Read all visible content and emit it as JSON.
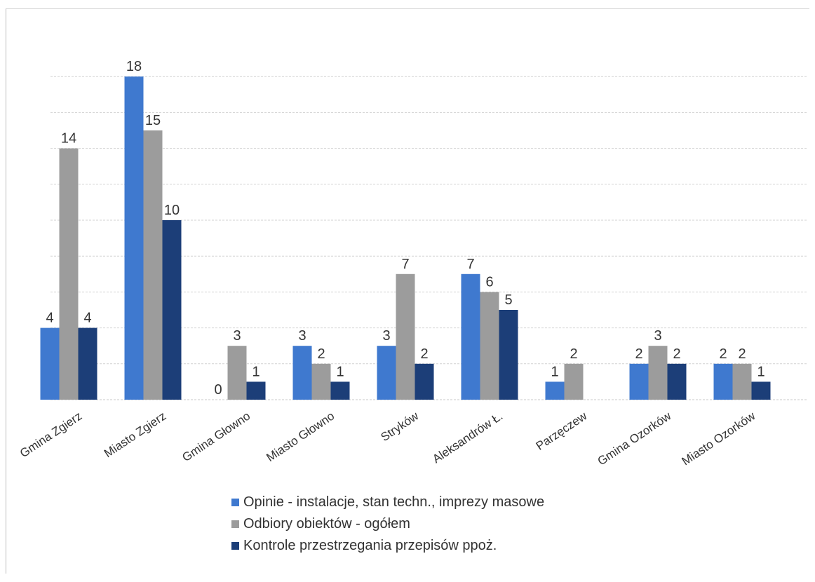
{
  "chart_data": {
    "type": "bar",
    "title": "",
    "xlabel": "",
    "ylabel": "",
    "ylim": [
      0,
      18
    ],
    "grid": true,
    "legend_position": "bottom",
    "categories": [
      "Gmina Zgierz",
      "Miasto Zgierz",
      "Gmina Głowno",
      "Miasto Głowno",
      "Stryków",
      "Aleksandrów Ł.",
      "Parzęczew",
      "Gmina Ozorków",
      "Miasto Ozorków"
    ],
    "series": [
      {
        "name": "Opinie - instalacje, stan techn., imprezy masowe",
        "color": "#3f79cf",
        "values": [
          4,
          18,
          0,
          3,
          3,
          7,
          1,
          2,
          2
        ],
        "labels": [
          "4",
          "18",
          "0",
          "3",
          "3",
          "7",
          "1",
          "2",
          "2"
        ]
      },
      {
        "name": "Odbiory obiektów - ogółem",
        "color": "#9c9c9c",
        "values": [
          14,
          15,
          3,
          2,
          7,
          6,
          2,
          3,
          2
        ],
        "labels": [
          "14",
          "15",
          "3",
          "2",
          "7",
          "6",
          "2",
          "3",
          "2"
        ]
      },
      {
        "name": "Kontrole przestrzegania przepisów ppoż.",
        "color": "#1c3e78",
        "values": [
          4,
          10,
          1,
          1,
          2,
          5,
          null,
          2,
          1
        ],
        "labels": [
          "4",
          "10",
          "1",
          "1",
          "2",
          "5",
          "",
          "2",
          "1"
        ]
      }
    ]
  }
}
